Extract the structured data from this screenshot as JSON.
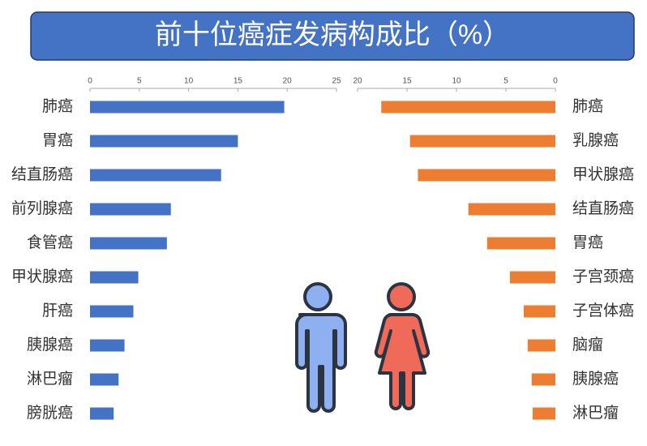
{
  "title": "前十位癌症发病构成比（%）",
  "chart_data": [
    {
      "type": "bar",
      "orientation": "horizontal",
      "color": "#4472c4",
      "categories": [
        "肺癌",
        "胃癌",
        "结直肠癌",
        "前列腺癌",
        "食管癌",
        "甲状腺癌",
        "肝癌",
        "胰腺癌",
        "淋巴瘤",
        "膀胱癌"
      ],
      "values": [
        19.7,
        15.0,
        13.3,
        8.2,
        7.8,
        4.9,
        4.4,
        3.5,
        2.9,
        2.4
      ],
      "xlim": [
        0,
        25
      ],
      "xticks": [
        0,
        5,
        10,
        15,
        20,
        25
      ],
      "x_reversed": false
    },
    {
      "type": "bar",
      "orientation": "horizontal",
      "color": "#ed7d31",
      "categories": [
        "肺癌",
        "乳腺癌",
        "甲状腺癌",
        "结直肠癌",
        "胃癌",
        "子宫颈癌",
        "子宫体癌",
        "脑瘤",
        "胰腺癌",
        "淋巴瘤"
      ],
      "values": [
        17.6,
        14.7,
        13.9,
        8.8,
        6.9,
        4.6,
        3.2,
        2.8,
        2.4,
        2.3
      ],
      "xlim": [
        0,
        20
      ],
      "xticks": [
        20,
        15,
        10,
        5,
        0
      ],
      "x_reversed": true
    }
  ]
}
